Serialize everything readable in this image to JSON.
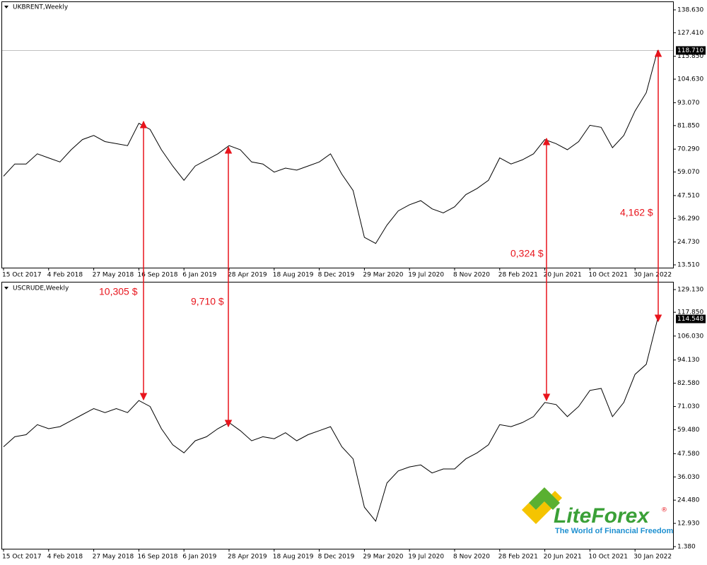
{
  "chart_data": [
    {
      "type": "line",
      "title": "UKBRENT,Weekly",
      "color": "#000000",
      "categories": [
        "15 Oct 2017",
        null,
        null,
        null,
        "4 Feb 2018",
        null,
        null,
        null,
        "27 May 2018",
        null,
        null,
        null,
        "16 Sep 2018",
        null,
        null,
        null,
        "6 Jan 2019",
        null,
        null,
        null,
        "28 Apr 2019",
        null,
        null,
        null,
        "18 Aug 2019",
        null,
        null,
        null,
        "8 Dec 2019",
        null,
        null,
        null,
        "29 Mar 2020",
        null,
        null,
        null,
        "19 Jul 2020",
        null,
        null,
        null,
        "8 Nov 2020",
        null,
        null,
        null,
        "28 Feb 2021",
        null,
        null,
        null,
        "20 Jun 2021",
        null,
        null,
        null,
        "10 Oct 2021",
        null,
        null,
        null,
        "30 Jan 2022",
        null,
        null
      ],
      "values": [
        57,
        63,
        63,
        68,
        66,
        64,
        70,
        75,
        77,
        74,
        73,
        72,
        83,
        80,
        70,
        62,
        55,
        62,
        65,
        68,
        72,
        70,
        64,
        63,
        59,
        61,
        60,
        62,
        64,
        68,
        58,
        50,
        27,
        24,
        33,
        40,
        43,
        45,
        41,
        39,
        42,
        48,
        51,
        55,
        66,
        63,
        65,
        68,
        75,
        73,
        70,
        74,
        82,
        81,
        71,
        77,
        89,
        98,
        118.71
      ],
      "ylim": [
        12.13,
        142.43
      ],
      "yticks": [
        {
          "value": 13.51,
          "label": "13.510"
        },
        {
          "value": 24.73,
          "label": "24.730"
        },
        {
          "value": 36.29,
          "label": "36.290"
        },
        {
          "value": 47.51,
          "label": "47.510"
        },
        {
          "value": 59.07,
          "label": "59.070"
        },
        {
          "value": 70.29,
          "label": "70.290"
        },
        {
          "value": 81.85,
          "label": "81.850"
        },
        {
          "value": 93.07,
          "label": "93.070"
        },
        {
          "value": 104.63,
          "label": "104.630"
        },
        {
          "value": 115.85,
          "label": "115.850"
        },
        {
          "value": 127.41,
          "label": "127.410"
        },
        {
          "value": 138.63,
          "label": "138.630"
        }
      ],
      "last_value": {
        "value": 118.71,
        "label": "118.710"
      }
    },
    {
      "type": "line",
      "title": "USCRUDE,Weekly",
      "color": "#000000",
      "categories": [
        "15 Oct 2017",
        null,
        null,
        null,
        "4 Feb 2018",
        null,
        null,
        null,
        "27 May 2018",
        null,
        null,
        null,
        "16 Sep 2018",
        null,
        null,
        null,
        "6 Jan 2019",
        null,
        null,
        null,
        "28 Apr 2019",
        null,
        null,
        null,
        "18 Aug 2019",
        null,
        null,
        null,
        "8 Dec 2019",
        null,
        null,
        null,
        "29 Mar 2020",
        null,
        null,
        null,
        "19 Jul 2020",
        null,
        null,
        null,
        "8 Nov 2020",
        null,
        null,
        null,
        "28 Feb 2021",
        null,
        null,
        null,
        "20 Jun 2021",
        null,
        null,
        null,
        "10 Oct 2021",
        null,
        null,
        null,
        "30 Jan 2022",
        null,
        null
      ],
      "values": [
        51,
        56,
        57,
        62,
        60,
        61,
        64,
        67,
        70,
        68,
        70,
        68,
        74,
        71,
        60,
        52,
        48,
        54,
        56,
        60,
        63,
        59,
        54,
        56,
        55,
        58,
        54,
        57,
        59,
        61,
        51,
        45,
        21,
        14,
        33,
        39,
        41,
        42,
        38,
        40,
        40,
        45,
        48,
        52,
        62,
        61,
        63,
        66,
        73,
        72,
        66,
        71,
        79,
        80,
        66,
        73,
        87,
        92,
        114.548
      ],
      "ylim": [
        0.32,
        132.65
      ],
      "yticks": [
        {
          "value": 1.38,
          "label": "1.380"
        },
        {
          "value": 12.93,
          "label": "12.930"
        },
        {
          "value": 24.48,
          "label": "24.480"
        },
        {
          "value": 36.03,
          "label": "36.030"
        },
        {
          "value": 47.58,
          "label": "47.580"
        },
        {
          "value": 59.48,
          "label": "59.480"
        },
        {
          "value": 71.03,
          "label": "71.030"
        },
        {
          "value": 82.58,
          "label": "82.580"
        },
        {
          "value": 94.13,
          "label": "94.130"
        },
        {
          "value": 106.03,
          "label": "106.030"
        },
        {
          "value": 117.85,
          "label": "117.850"
        },
        {
          "value": 129.13,
          "label": "129.130"
        }
      ],
      "last_value": 114.548
    }
  ],
  "annotations": [
    "10,305 $",
    "9,710 $",
    "0,324 $",
    "4,162 $"
  ],
  "logo": {
    "name": "LiteForex",
    "mark": "®",
    "tagline": "The World of Financial Freedom"
  }
}
